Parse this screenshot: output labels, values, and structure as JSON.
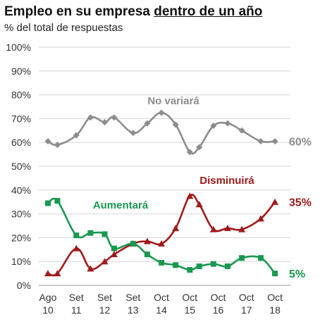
{
  "header": {
    "title_prefix": "Empleo en su empresa ",
    "title_highlight": "dentro de un año",
    "subtitle": "% del total de respuestas"
  },
  "chart_data": {
    "type": "line",
    "title": "Empleo en su empresa dentro de un año",
    "subtitle": "% del total de respuestas",
    "ylim": [
      0,
      100
    ],
    "y_ticks": [
      "0%",
      "10%",
      "20%",
      "30%",
      "40%",
      "50%",
      "60%",
      "70%",
      "80%",
      "90%",
      "100%"
    ],
    "grid": "horizontal",
    "legend": "inline labels",
    "x_ticks": [
      {
        "month": "Ago",
        "year": "10",
        "index": 0
      },
      {
        "month": "Set",
        "year": "11",
        "index": 3
      },
      {
        "month": "Set",
        "year": "12",
        "index": 6
      },
      {
        "month": "Set",
        "year": "13",
        "index": 9
      },
      {
        "month": "Oct",
        "year": "14",
        "index": 12
      },
      {
        "month": "Oct",
        "year": "15",
        "index": 15
      },
      {
        "month": "Oct",
        "year": "16",
        "index": 18
      },
      {
        "month": "Oct",
        "year": "17",
        "index": 21
      },
      {
        "month": "Oct",
        "year": "18",
        "index": 24
      }
    ],
    "series": [
      {
        "name": "No variará",
        "color": "#8c8c8c",
        "marker": "diamond",
        "end_label": "60%",
        "values": [
          60.5,
          59,
          63,
          70.5,
          68.5,
          70.5,
          64,
          68,
          72.5,
          67.5,
          56,
          58,
          67,
          68,
          65,
          60.5,
          60.5
        ]
      },
      {
        "name": "Disminuirá",
        "color": "#a01a1a",
        "marker": "triangle",
        "end_label": "35%",
        "values": [
          5,
          5,
          15.5,
          7,
          10,
          13,
          17.5,
          18.5,
          17.5,
          24,
          37.5,
          34,
          23.5,
          24,
          23.5,
          28,
          35
        ]
      },
      {
        "name": "Aumentará",
        "color": "#1a9850",
        "marker": "square",
        "end_label": "5%",
        "values": [
          34.5,
          35.5,
          21,
          22,
          21.5,
          15.5,
          17.5,
          13,
          9.5,
          8.5,
          6.5,
          8,
          9,
          8,
          11.5,
          11.5,
          5
        ]
      }
    ],
    "x_index_of_points": [
      0,
      1,
      3,
      4.5,
      6,
      7,
      9,
      10.5,
      12,
      13.5,
      15,
      16,
      17.5,
      19,
      20.5,
      22.5,
      24
    ]
  }
}
